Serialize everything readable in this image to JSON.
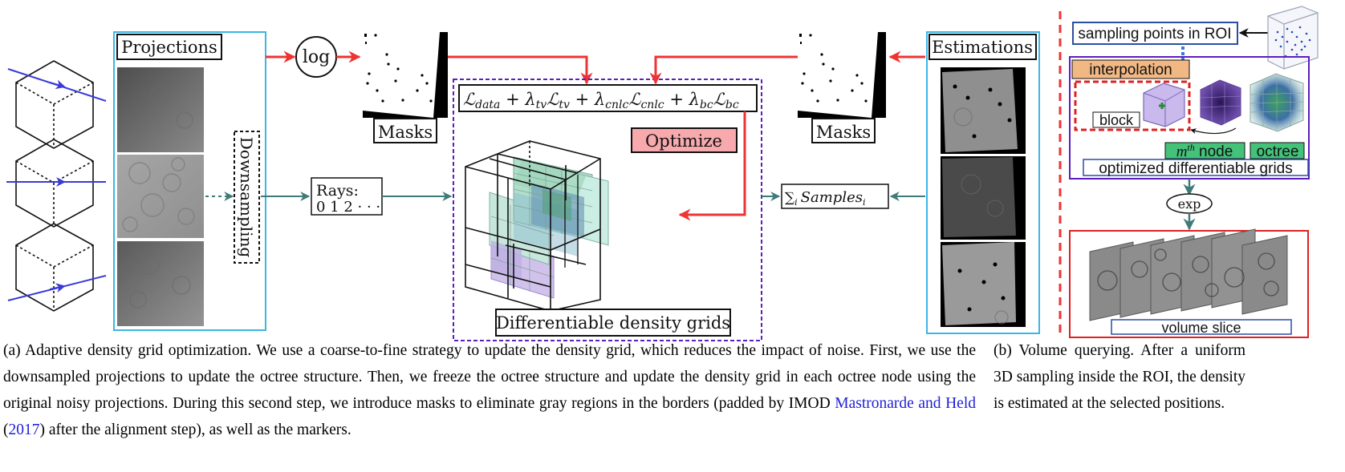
{
  "panel_a": {
    "projections_label": "Projections",
    "downsampling_label": "Downsampling",
    "log_label": "log",
    "masks_label_left": "Masks",
    "masks_label_right": "Masks",
    "rays_label": "Rays:",
    "rays_values": "0 1 2 · · ·",
    "loss_terms": [
      {
        "base": "ℒ",
        "sub": "data"
      },
      {
        "lambda_sub": "tv",
        "base": "ℒ",
        "sub": "tv"
      },
      {
        "lambda_sub": "cnlc",
        "base": "ℒ",
        "sub": "cnlc"
      },
      {
        "lambda_sub": "bc",
        "base": "ℒ",
        "sub": "bc"
      }
    ],
    "optimize_label": "Optimize",
    "grids_label": "Differentiable density grids",
    "samples_sum_sub": "i",
    "samples_label": "Samples",
    "samples_sub": "i",
    "estimations_label": "Estimations"
  },
  "panel_b": {
    "sampling_label": "sampling points in ROI",
    "interpolation_label": "interpolation",
    "block_label": "block",
    "mth_base": "m",
    "mth_sup": "th",
    "node_word": " node",
    "octree_label": "octree",
    "grids_label": "optimized differentiable grids",
    "exp_label": "exp",
    "slice_label": "volume slice"
  },
  "captions": {
    "a_text_1": "(a) Adaptive density grid optimization. We use a coarse-to-fine strategy to update the density grid, which reduces the impact of noise. First, we use the downsampled projections to update the octree structure. Then, we freeze the octree structure and update the density grid in each octree node using the original noisy projections. During this second step, we introduce masks to eliminate gray regions in the borders (padded by IMOD ",
    "a_cite_name": "Mastronarde and Held",
    "a_paren_open": " (",
    "a_cite_year": "2017",
    "a_text_2": ") after the alignment step), as well as the markers.",
    "b_text": "(b) Volume querying. After a uniform 3D sampling inside the ROI, the density is estimated at the selected positions."
  },
  "colors": {
    "red_arrow": "#ee3333",
    "teal_arrow": "#3f7b78",
    "cyan_frame": "#3bb6e4",
    "purple_frame": "#5b1fc0",
    "blue_frame": "#2a4fa0",
    "node_green": "#44c27a",
    "interp_orange": "#f2b884",
    "optimize_pink": "#f7a9ae"
  }
}
